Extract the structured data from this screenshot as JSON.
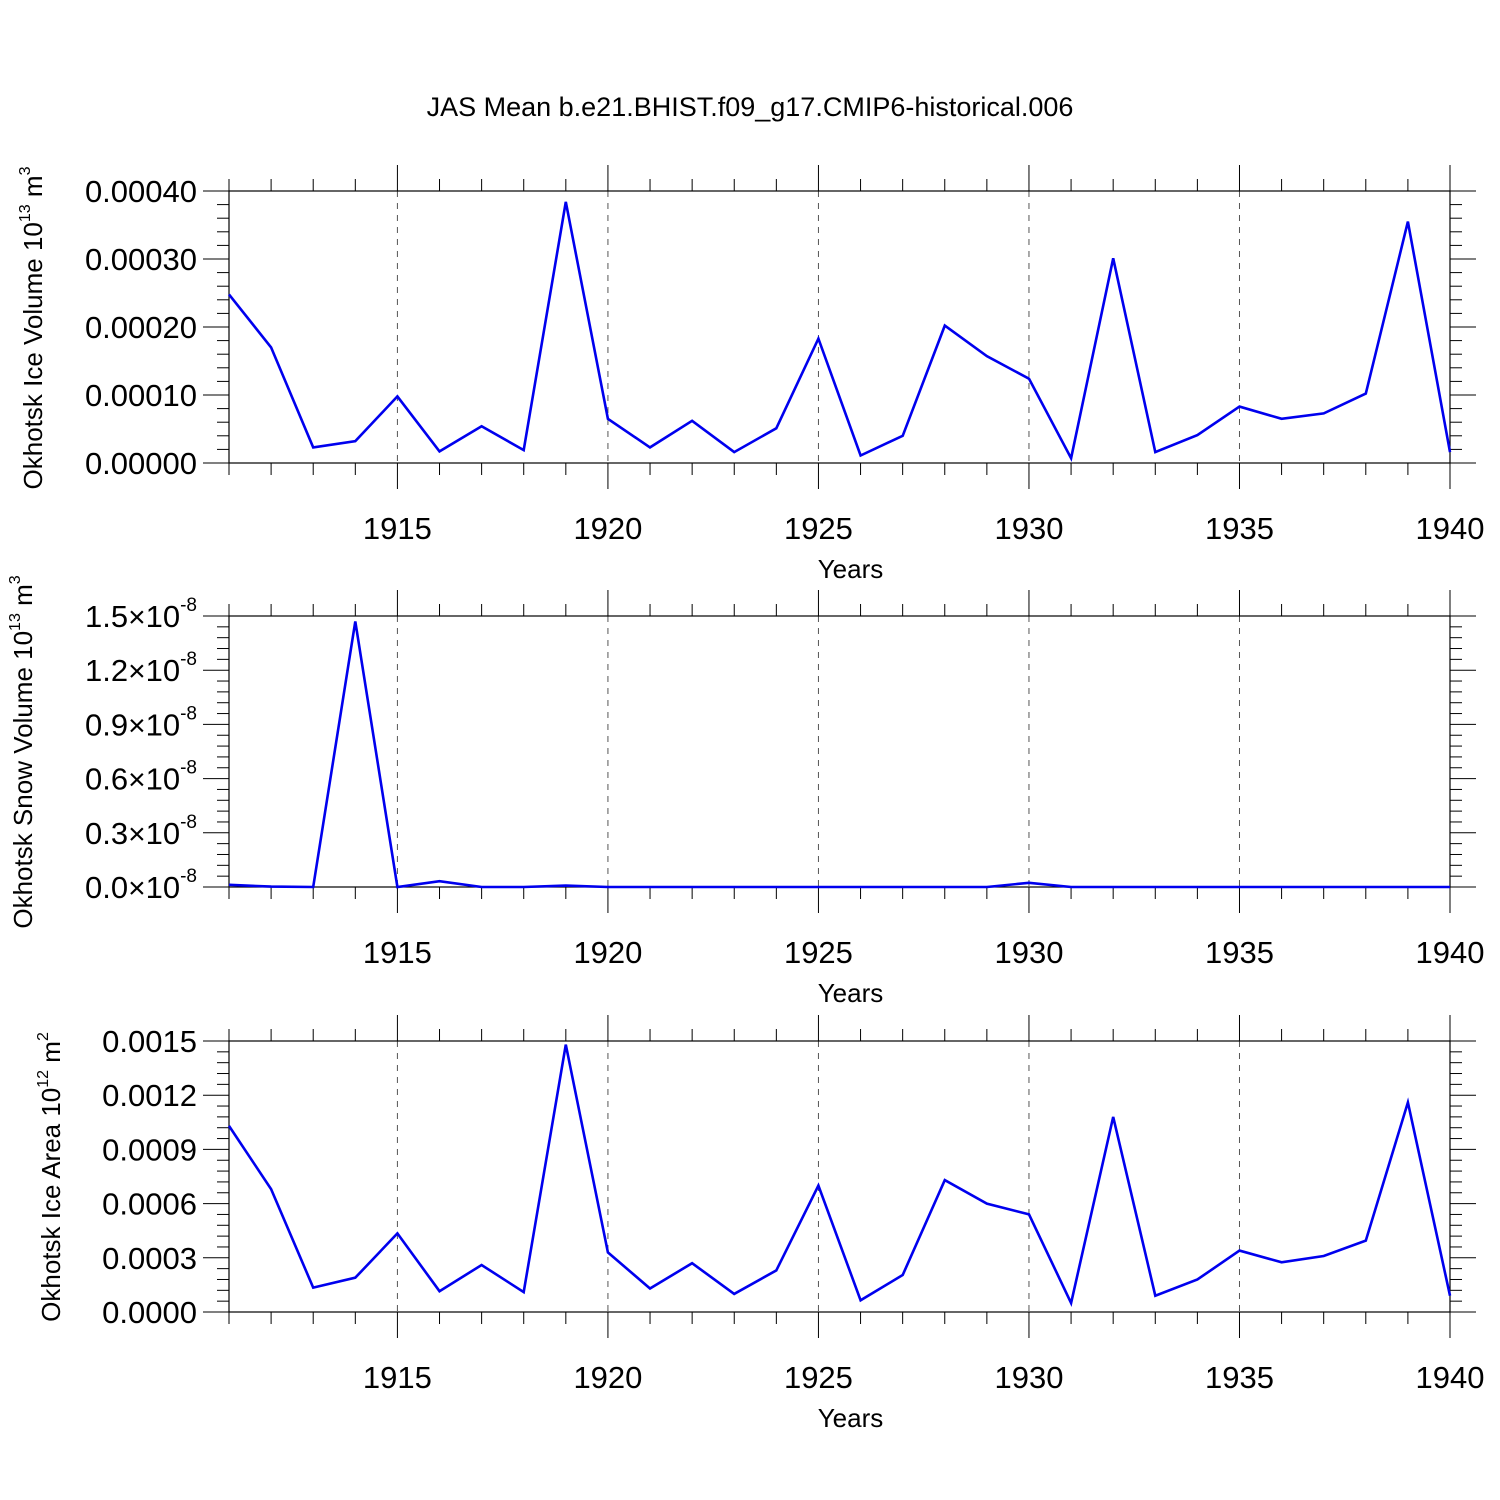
{
  "title": "JAS Mean b.e21.BHIST.f09_g17.CMIP6-historical.006",
  "colors": {
    "series": "#0000ee",
    "axis": "#000000",
    "grid": "#555555"
  },
  "chart_data": [
    {
      "type": "line",
      "title": "JAS Mean b.e21.BHIST.f09_g17.CMIP6-historical.006",
      "xlabel": "Years",
      "ylabel": "Okhotsk Ice Volume 10",
      "ylabel_exp": "13",
      "ylabel_unit": "m",
      "ylabel_unit_exp": "3",
      "xlim": [
        1911,
        1940
      ],
      "ylim": [
        0,
        0.0004
      ],
      "xticks": [
        1915,
        1920,
        1925,
        1930,
        1935,
        1940
      ],
      "xtick_labels": [
        "1915",
        "1920",
        "1925",
        "1930",
        "1935",
        "1940"
      ],
      "yticks": [
        0,
        0.0001,
        0.0002,
        0.0003,
        0.0004
      ],
      "ytick_labels": [
        {
          "main": "0.00000"
        },
        {
          "main": "0.00010"
        },
        {
          "main": "0.00020"
        },
        {
          "main": "0.00030"
        },
        {
          "main": "0.00040"
        }
      ],
      "grid": "vertical dashed at major x ticks",
      "series": [
        {
          "name": "Okhotsk Ice Volume",
          "x": [
            1911,
            1912,
            1913,
            1914,
            1915,
            1916,
            1917,
            1918,
            1919,
            1920,
            1921,
            1922,
            1923,
            1924,
            1925,
            1926,
            1927,
            1928,
            1929,
            1930,
            1931,
            1932,
            1933,
            1934,
            1935,
            1936,
            1937,
            1938,
            1939,
            1940
          ],
          "values": [
            0.000248,
            0.00017,
            2.3e-05,
            3.2e-05,
            9.8e-05,
            1.7e-05,
            5.4e-05,
            1.9e-05,
            0.000384,
            6.5e-05,
            2.3e-05,
            6.2e-05,
            1.6e-05,
            5.1e-05,
            0.000183,
            1.1e-05,
            4e-05,
            0.000202,
            0.000157,
            0.000124,
            7e-06,
            0.000301,
            1.6e-05,
            4.1e-05,
            8.3e-05,
            6.5e-05,
            7.3e-05,
            0.000102,
            0.000355,
            1.6e-05
          ]
        }
      ]
    },
    {
      "type": "line",
      "xlabel": "Years",
      "ylabel": "Okhotsk Snow Volume 10",
      "ylabel_exp": "13",
      "ylabel_unit": "m",
      "ylabel_unit_exp": "3",
      "xlim": [
        1911,
        1940
      ],
      "ylim": [
        0,
        1.5e-08
      ],
      "xticks": [
        1915,
        1920,
        1925,
        1930,
        1935,
        1940
      ],
      "xtick_labels": [
        "1915",
        "1920",
        "1925",
        "1930",
        "1935",
        "1940"
      ],
      "yticks": [
        0,
        3e-09,
        6e-09,
        9e-09,
        1.2e-08,
        1.5e-08
      ],
      "ytick_labels": [
        {
          "main": "0.0",
          "times": "×",
          "base": "10",
          "exp": "-8"
        },
        {
          "main": "0.3",
          "times": "×",
          "base": "10",
          "exp": "-8"
        },
        {
          "main": "0.6",
          "times": "×",
          "base": "10",
          "exp": "-8"
        },
        {
          "main": "0.9",
          "times": "×",
          "base": "10",
          "exp": "-8"
        },
        {
          "main": "1.2",
          "times": "×",
          "base": "10",
          "exp": "-8"
        },
        {
          "main": "1.5",
          "times": "×",
          "base": "10",
          "exp": "-8"
        }
      ],
      "grid": "vertical dashed at major x ticks",
      "series": [
        {
          "name": "Okhotsk Snow Volume",
          "x": [
            1911,
            1912,
            1913,
            1914,
            1915,
            1916,
            1917,
            1918,
            1919,
            1920,
            1921,
            1922,
            1923,
            1924,
            1925,
            1926,
            1927,
            1928,
            1929,
            1930,
            1931,
            1932,
            1933,
            1934,
            1935,
            1936,
            1937,
            1938,
            1939,
            1940
          ],
          "values": [
            1.2e-10,
            2e-11,
            0,
            1.47e-08,
            0,
            3.2e-10,
            0,
            0,
            8e-11,
            0,
            0,
            0,
            0,
            0,
            0,
            0,
            0,
            0,
            0,
            2.3e-10,
            0,
            0,
            0,
            0,
            0,
            0,
            0,
            0,
            0,
            0
          ]
        }
      ]
    },
    {
      "type": "line",
      "xlabel": "Years",
      "ylabel": "Okhotsk Ice Area 10",
      "ylabel_exp": "12",
      "ylabel_unit": "m",
      "ylabel_unit_exp": "2",
      "xlim": [
        1911,
        1940
      ],
      "ylim": [
        0,
        0.0015
      ],
      "xticks": [
        1915,
        1920,
        1925,
        1930,
        1935,
        1940
      ],
      "xtick_labels": [
        "1915",
        "1920",
        "1925",
        "1930",
        "1935",
        "1940"
      ],
      "yticks": [
        0,
        0.0003,
        0.0006,
        0.0009,
        0.0012,
        0.0015
      ],
      "ytick_labels": [
        {
          "main": "0.0000"
        },
        {
          "main": "0.0003"
        },
        {
          "main": "0.0006"
        },
        {
          "main": "0.0009"
        },
        {
          "main": "0.0012"
        },
        {
          "main": "0.0015"
        }
      ],
      "grid": "vertical dashed at major x ticks",
      "series": [
        {
          "name": "Okhotsk Ice Area",
          "x": [
            1911,
            1912,
            1913,
            1914,
            1915,
            1916,
            1917,
            1918,
            1919,
            1920,
            1921,
            1922,
            1923,
            1924,
            1925,
            1926,
            1927,
            1928,
            1929,
            1930,
            1931,
            1932,
            1933,
            1934,
            1935,
            1936,
            1937,
            1938,
            1939,
            1940
          ],
          "values": [
            0.00103,
            0.00068,
            0.000135,
            0.00019,
            0.000435,
            0.000115,
            0.00026,
            0.00011,
            0.00148,
            0.00033,
            0.00013,
            0.00027,
            0.0001,
            0.00023,
            0.0007,
            6.5e-05,
            0.000205,
            0.00073,
            0.0006,
            0.00054,
            5e-05,
            0.00108,
            9e-05,
            0.00018,
            0.00034,
            0.000275,
            0.00031,
            0.000395,
            0.00116,
            9e-05
          ]
        }
      ]
    }
  ]
}
